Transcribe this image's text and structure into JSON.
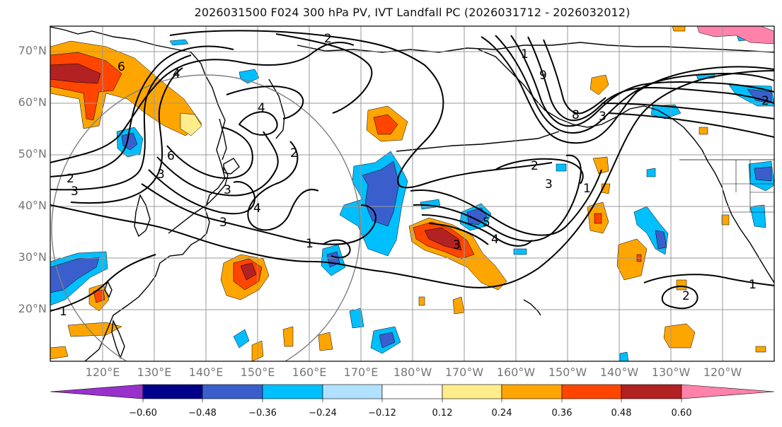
{
  "title": "2026031500 F024 300 hPa PV, IVT Landfall PC (2026031712 - 2026032012)",
  "map": {
    "lat_labels": [
      "70°N",
      "60°N",
      "50°N",
      "40°N",
      "30°N",
      "20°N"
    ],
    "lon_labels": [
      "120°E",
      "130°E",
      "140°E",
      "150°E",
      "160°E",
      "170°E",
      "180°W",
      "170°W",
      "160°W",
      "150°W",
      "140°W",
      "130°W",
      "120°W"
    ],
    "contour_labels": [
      "2",
      "6",
      "4",
      "4",
      "6",
      "2",
      "3",
      "3",
      "4",
      "3",
      "1",
      "2",
      "3",
      "1",
      "2",
      "9",
      "8",
      "3",
      "1",
      "2",
      "3",
      "1",
      "2",
      "3",
      "4",
      "5",
      "1"
    ],
    "grid": "on"
  },
  "colorbar": {
    "ticks": [
      "−0.60",
      "−0.48",
      "−0.36",
      "−0.24",
      "−0.12",
      "0.12",
      "0.24",
      "0.36",
      "0.48",
      "0.60"
    ],
    "colors": [
      "#9932CC",
      "#00008B",
      "#3A5FCD",
      "#00BFFF",
      "#B0E2FF",
      "#FFFFFF",
      "#FFEC8B",
      "#FFA500",
      "#FF4500",
      "#B22222",
      "#FF82AB"
    ]
  }
}
